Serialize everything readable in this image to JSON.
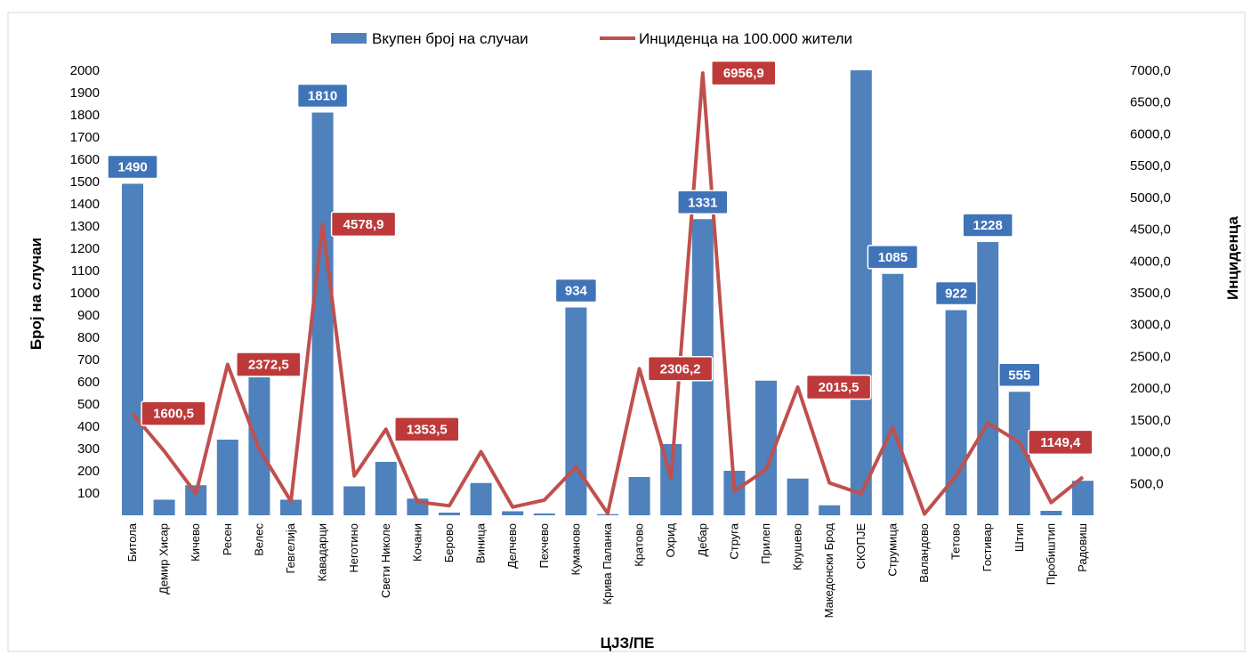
{
  "chart_data": {
    "type": "bar",
    "xlabel": "ЦЈЗ/ПЕ",
    "ylabel": "Број на случаи",
    "y2label": "Инциденца",
    "ylim": [
      0,
      2000
    ],
    "y2lim": [
      0,
      7000
    ],
    "yticks": [
      "100",
      "200",
      "300",
      "400",
      "500",
      "600",
      "700",
      "800",
      "900",
      "1000",
      "1100",
      "1200",
      "1300",
      "1400",
      "1500",
      "1600",
      "1700",
      "1800",
      "1900",
      "2000"
    ],
    "y2ticks": [
      "500,0",
      "1000,0",
      "1500,0",
      "2000,0",
      "2500,0",
      "3000,0",
      "3500,0",
      "4000,0",
      "4500,0",
      "5000,0",
      "5500,0",
      "6000,0",
      "6500,0",
      "7000,0"
    ],
    "legend_position": "top",
    "grid": false,
    "colors": {
      "bars": "#4f81bd",
      "line": "#c0504d",
      "bar_label": "#3f74b8",
      "line_label": "#be3a3a"
    },
    "categories": [
      "Битола",
      "Демир Хисар",
      "Кичево",
      "Ресен",
      "Велес",
      "Гевгелија",
      "Кавадарци",
      "Неготино",
      "Свети Николе",
      "Кочани",
      "Берово",
      "Виница",
      "Делчево",
      "Пехчево",
      "Куманово",
      "Крива Паланка",
      "Кратово",
      "Охрид",
      "Дебар",
      "Струга",
      "Прилеп",
      "Крушево",
      "Македонски Брод",
      "СКОПЈЕ",
      "Струмица",
      "Валандово",
      "Тетово",
      "Гостивар",
      "Штип",
      "Пробиштип",
      "Радовиш"
    ],
    "series": [
      {
        "name": "Вкупен број на случаи",
        "type": "bar",
        "axis": "left",
        "values": [
          1490,
          70,
          135,
          340,
          620,
          70,
          1810,
          130,
          240,
          75,
          12,
          145,
          18,
          8,
          934,
          5,
          172,
          320,
          1331,
          200,
          605,
          165,
          45,
          2000,
          1085,
          0,
          922,
          1228,
          555,
          20,
          155
        ],
        "data_labels": [
          {
            "index": 0,
            "text": "1490"
          },
          {
            "index": 6,
            "text": "1810"
          },
          {
            "index": 14,
            "text": "934"
          },
          {
            "index": 18,
            "text": "1331"
          },
          {
            "index": 24,
            "text": "1085"
          },
          {
            "index": 26,
            "text": "922"
          },
          {
            "index": 27,
            "text": "1228"
          },
          {
            "index": 28,
            "text": "555"
          }
        ]
      },
      {
        "name": "Инциденца на 100.000 жители",
        "type": "line",
        "axis": "right",
        "values": [
          1600.5,
          1010,
          340,
          2372.5,
          1040,
          220,
          4578.9,
          620,
          1353.5,
          210,
          150,
          1000,
          130,
          240,
          760,
          30,
          2306.2,
          580,
          6956.9,
          380,
          720,
          2015.5,
          510,
          340,
          1380,
          20,
          620,
          1450,
          1149.4,
          200,
          600
        ],
        "data_labels": [
          {
            "index": 0,
            "text": "1600,5"
          },
          {
            "index": 3,
            "text": "2372,5"
          },
          {
            "index": 6,
            "text": "4578,9"
          },
          {
            "index": 8,
            "text": "1353,5"
          },
          {
            "index": 16,
            "text": "2306,2"
          },
          {
            "index": 18,
            "text": "6956,9"
          },
          {
            "index": 21,
            "text": "2015,5"
          },
          {
            "index": 28,
            "text": "1149,4"
          }
        ]
      }
    ]
  }
}
